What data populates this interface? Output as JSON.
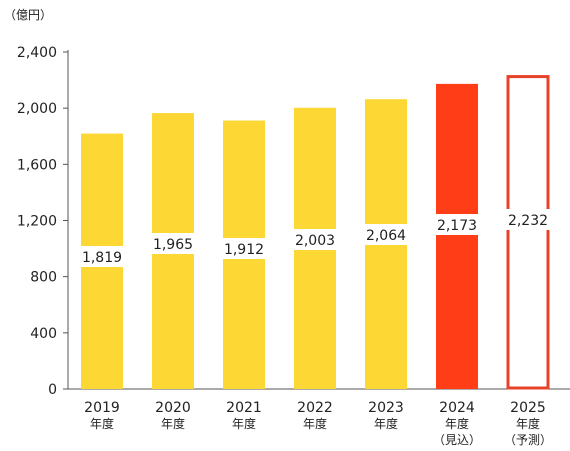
{
  "chart_data": {
    "type": "bar",
    "unit": "（億円）",
    "categories": [
      {
        "year": "2019",
        "line2": "年度",
        "line3": ""
      },
      {
        "year": "2020",
        "line2": "年度",
        "line3": ""
      },
      {
        "year": "2021",
        "line2": "年度",
        "line3": ""
      },
      {
        "year": "2022",
        "line2": "年度",
        "line3": ""
      },
      {
        "year": "2023",
        "line2": "年度",
        "line3": ""
      },
      {
        "year": "2024",
        "line2": "年度",
        "line3": "（見込）"
      },
      {
        "year": "2025",
        "line2": "年度",
        "line3": "（予測）"
      }
    ],
    "values": [
      1819,
      1965,
      1912,
      2003,
      2064,
      2173,
      2232
    ],
    "value_labels": [
      "1,819",
      "1,965",
      "1,912",
      "2,003",
      "2,064",
      "2,173",
      "2,232"
    ],
    "bar_styles": [
      "actual",
      "actual",
      "actual",
      "actual",
      "actual",
      "estimate",
      "forecast"
    ],
    "colors": {
      "actual": "#FDD835",
      "estimate": "#FF3D17",
      "forecast_outline": "#E8412A",
      "axis": "#555555"
    },
    "yticks": [
      0,
      400,
      800,
      1200,
      1600,
      2000,
      2400
    ],
    "ytick_labels": [
      "0",
      "400",
      "800",
      "1,200",
      "1,600",
      "2,000",
      "2,400"
    ],
    "ylim": [
      0,
      2400
    ],
    "grid": false,
    "legend": "none"
  }
}
